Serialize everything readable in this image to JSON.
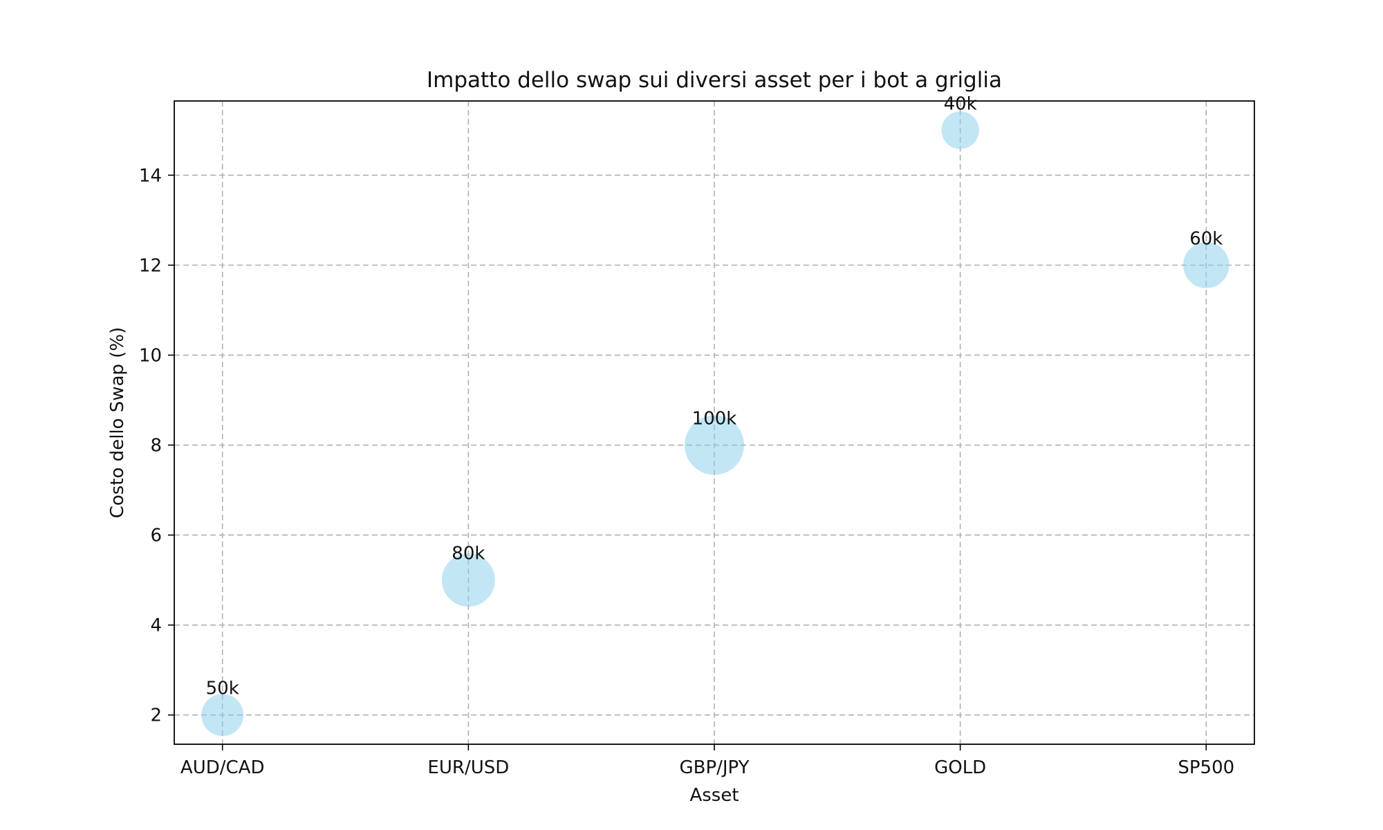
{
  "chart_data": {
    "type": "scatter",
    "title": "Impatto dello swap sui diversi asset per i bot a griglia",
    "xlabel": "Asset",
    "ylabel": "Costo dello Swap (%)",
    "categories": [
      "AUD/CAD",
      "EUR/USD",
      "GBP/JPY",
      "GOLD",
      "SP500"
    ],
    "y": [
      2,
      5,
      8,
      15,
      12
    ],
    "bubble_values": [
      50000,
      80000,
      100000,
      40000,
      60000
    ],
    "bubble_labels": [
      "50k",
      "80k",
      "100k",
      "40k",
      "60k"
    ],
    "ylim": [
      1.35,
      15.65
    ],
    "yticks": [
      2,
      4,
      6,
      8,
      10,
      12,
      14
    ],
    "grid": true,
    "bubble_color": "#87ceeb",
    "bubble_alpha": 0.5
  }
}
